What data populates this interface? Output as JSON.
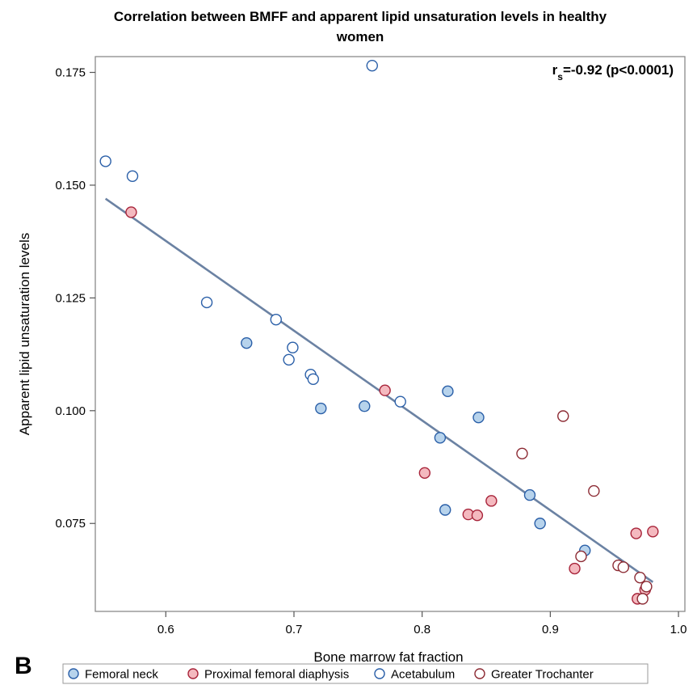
{
  "chart_data": {
    "type": "scatter",
    "title_line1": "Correlation between BMFF and apparent lipid unsaturation levels in healthy",
    "title_line2": "women",
    "xlabel": "Bone marrow fat fraction",
    "ylabel": "Apparent lipid unsaturation levels",
    "xlim": [
      0.545,
      1.005
    ],
    "ylim": [
      0.0555,
      0.1785
    ],
    "xticks": [
      0.6,
      0.7,
      0.8,
      0.9,
      1.0
    ],
    "xtick_labels": [
      "0.6",
      "0.7",
      "0.8",
      "0.9",
      "1.0"
    ],
    "yticks": [
      0.075,
      0.1,
      0.125,
      0.15,
      0.175
    ],
    "ytick_labels": [
      "0.075",
      "0.100",
      "0.125",
      "0.150",
      "0.175"
    ],
    "grid": false,
    "legend_position": "bottom",
    "stat": {
      "prefix": "r",
      "subscript": "s",
      "text": "=-0.92 (p<0.0001)"
    },
    "panel_label": "B",
    "regression_line": {
      "x": [
        0.553,
        0.98
      ],
      "y": [
        0.147,
        0.062
      ],
      "color": "#6b82a3"
    },
    "series": [
      {
        "name": "Femoral neck",
        "fill": "#b7d3ec",
        "stroke": "#2a5fa8",
        "points": [
          [
            0.663,
            0.115
          ],
          [
            0.721,
            0.1005
          ],
          [
            0.755,
            0.101
          ],
          [
            0.82,
            0.1043
          ],
          [
            0.814,
            0.094
          ],
          [
            0.844,
            0.0985
          ],
          [
            0.818,
            0.078
          ],
          [
            0.884,
            0.0813
          ],
          [
            0.892,
            0.075
          ],
          [
            0.927,
            0.069
          ]
        ]
      },
      {
        "name": "Proximal femoral diaphysis",
        "fill": "#f4b9bf",
        "stroke": "#a8243a",
        "points": [
          [
            0.573,
            0.144
          ],
          [
            0.771,
            0.1045
          ],
          [
            0.802,
            0.0862
          ],
          [
            0.836,
            0.077
          ],
          [
            0.843,
            0.0768
          ],
          [
            0.854,
            0.08
          ],
          [
            0.919,
            0.065
          ],
          [
            0.967,
            0.0728
          ],
          [
            0.98,
            0.0732
          ],
          [
            0.968,
            0.0583
          ],
          [
            0.974,
            0.0603
          ]
        ]
      },
      {
        "name": "Acetabulum",
        "fill": "#ffffff",
        "stroke": "#2a5fa8",
        "points": [
          [
            0.553,
            0.1553
          ],
          [
            0.574,
            0.152
          ],
          [
            0.632,
            0.124
          ],
          [
            0.686,
            0.1202
          ],
          [
            0.699,
            0.114
          ],
          [
            0.696,
            0.1113
          ],
          [
            0.713,
            0.108
          ],
          [
            0.715,
            0.107
          ],
          [
            0.761,
            0.1765
          ],
          [
            0.783,
            0.102
          ]
        ]
      },
      {
        "name": "Greater Trochanter",
        "fill": "#ffffff",
        "stroke": "#8c2a33",
        "points": [
          [
            0.878,
            0.0905
          ],
          [
            0.91,
            0.0988
          ],
          [
            0.934,
            0.0822
          ],
          [
            0.924,
            0.0677
          ],
          [
            0.953,
            0.0657
          ],
          [
            0.957,
            0.0653
          ],
          [
            0.97,
            0.063
          ],
          [
            0.975,
            0.061
          ],
          [
            0.972,
            0.0583
          ]
        ]
      }
    ]
  }
}
